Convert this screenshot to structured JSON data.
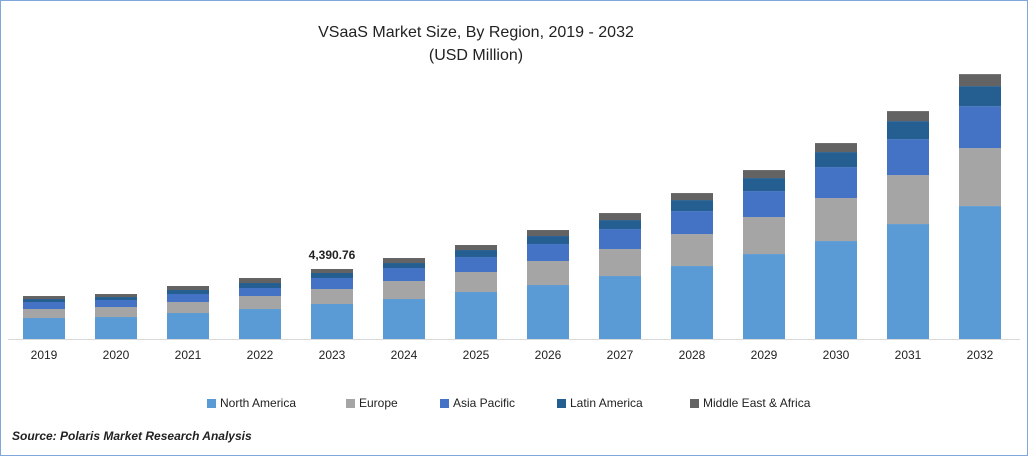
{
  "chart_data": {
    "type": "stacked_bar",
    "title": "VSaaS Market Size, By Region, 2019 - 2032",
    "subtitle": "(USD Million)",
    "categories": [
      "2019",
      "2020",
      "2021",
      "2022",
      "2023",
      "2024",
      "2025",
      "2026",
      "2027",
      "2028",
      "2029",
      "2030",
      "2031",
      "2032"
    ],
    "series": [
      {
        "name": "North America",
        "color": "#5b9bd5",
        "values": [
          1317,
          1379,
          1630,
          1881,
          2195,
          2508,
          2947,
          3386,
          3950,
          4577,
          5330,
          6145,
          7211,
          8339
        ]
      },
      {
        "name": "Europe",
        "color": "#a5a5a5",
        "values": [
          564,
          627,
          690,
          815,
          941,
          1129,
          1254,
          1505,
          1693,
          2006,
          2320,
          2696,
          3072,
          3637
        ]
      },
      {
        "name": "Asia Pacific",
        "color": "#4472c4",
        "values": [
          439,
          439,
          502,
          502,
          690,
          815,
          941,
          1066,
          1254,
          1442,
          1630,
          1944,
          2257,
          2633
        ]
      },
      {
        "name": "Latin America",
        "color": "#255e91",
        "values": [
          188,
          188,
          251,
          314,
          314,
          314,
          439,
          502,
          564,
          690,
          815,
          941,
          1129,
          1254
        ]
      },
      {
        "name": "Middle East & Africa",
        "color": "#636363",
        "values": [
          188,
          188,
          251,
          314,
          251,
          314,
          314,
          376,
          439,
          439,
          502,
          564,
          627,
          752
        ]
      }
    ],
    "annotations": [
      {
        "x": "2023",
        "value": 4390.76,
        "label": "4,390.76"
      }
    ],
    "ylim": [
      0,
      17000
    ],
    "legend": "bottom",
    "source": "Source: Polaris  Market Research Analysis"
  }
}
